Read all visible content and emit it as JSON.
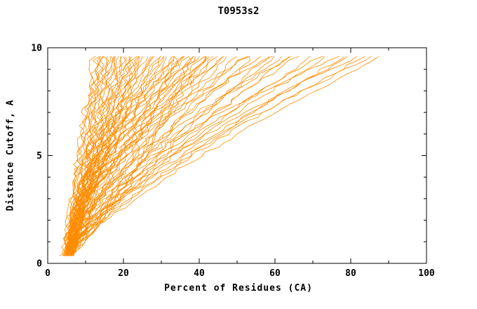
{
  "chart_data": {
    "type": "line",
    "title": "T0953s2",
    "xlabel": "Percent of Residues (CA)",
    "ylabel": "Distance Cutoff, A",
    "xlim": [
      0,
      100
    ],
    "ylim": [
      0,
      10
    ],
    "x_major_ticks": [
      0,
      20,
      40,
      60,
      80,
      100
    ],
    "x_minor_step": 10,
    "y_major_ticks": [
      0,
      5,
      10
    ],
    "y_minor_step": 1,
    "grid": false,
    "legend": "none",
    "color": "#ff8c00",
    "axis_color": "#000000",
    "y_start": 0.35,
    "y_end": 9.6,
    "jitter": 0.9,
    "steps": 46,
    "curves_note": "Each curve is a model accuracy curve [x_at_cutoff0, x_at_cutoff10, shape_exponent]; x interpolated as x0+(x1-x0)*t^p over distance cutoff",
    "curves": [
      [
        4.0,
        12,
        1.0
      ],
      [
        4.5,
        13,
        1.1
      ],
      [
        5.0,
        13.5,
        0.9
      ],
      [
        4.2,
        14,
        1.2
      ],
      [
        5.5,
        14.5,
        1.0
      ],
      [
        4.8,
        15,
        1.3
      ],
      [
        5.2,
        15.5,
        0.95
      ],
      [
        4.4,
        16,
        1.1
      ],
      [
        5.8,
        16.5,
        1.05
      ],
      [
        5.0,
        17,
        1.2
      ],
      [
        4.6,
        17.5,
        0.9
      ],
      [
        5.4,
        18,
        1.15
      ],
      [
        6.0,
        18.5,
        1.0
      ],
      [
        4.9,
        19,
        1.25
      ],
      [
        5.6,
        19.5,
        1.1
      ],
      [
        5.1,
        20,
        0.95
      ],
      [
        4.7,
        20.5,
        1.2
      ],
      [
        5.9,
        21,
        1.05
      ],
      [
        5.3,
        21.5,
        1.3
      ],
      [
        6.1,
        22,
        1.0
      ],
      [
        5.0,
        22.5,
        1.15
      ],
      [
        5.5,
        23,
        0.9
      ],
      [
        4.8,
        23.5,
        1.2
      ],
      [
        6.2,
        24,
        1.05
      ],
      [
        5.2,
        24.5,
        1.1
      ],
      [
        5.0,
        25,
        1.2
      ],
      [
        5.6,
        26,
        1.35
      ],
      [
        4.9,
        27,
        1.1
      ],
      [
        6.0,
        28,
        1.5
      ],
      [
        5.3,
        29,
        1.25
      ],
      [
        5.8,
        30,
        1.4
      ],
      [
        5.1,
        31,
        1.15
      ],
      [
        6.3,
        32,
        1.6
      ],
      [
        5.5,
        33,
        1.3
      ],
      [
        5.0,
        34,
        1.45
      ],
      [
        6.1,
        35,
        1.2
      ],
      [
        5.4,
        36,
        1.55
      ],
      [
        5.9,
        37,
        1.35
      ],
      [
        5.2,
        38,
        1.5
      ],
      [
        6.4,
        39,
        1.25
      ],
      [
        5.6,
        40,
        1.6
      ],
      [
        5.1,
        41,
        1.4
      ],
      [
        6.0,
        42,
        1.3
      ],
      [
        5.5,
        43,
        1.55
      ],
      [
        6.2,
        44,
        1.45
      ],
      [
        5.3,
        45,
        1.35
      ],
      [
        5.8,
        27.5,
        1.7
      ],
      [
        5.0,
        30.5,
        1.8
      ],
      [
        6.1,
        33.5,
        1.9
      ],
      [
        5.4,
        36.5,
        2.0
      ],
      [
        5.9,
        39.5,
        2.1
      ],
      [
        5.2,
        42.5,
        1.9
      ],
      [
        6.3,
        34,
        0.8
      ],
      [
        5.6,
        38,
        0.75
      ],
      [
        5.1,
        41.5,
        0.85
      ],
      [
        5.5,
        46,
        1.2
      ],
      [
        6.0,
        48,
        1.35
      ],
      [
        5.2,
        50,
        1.1
      ],
      [
        6.4,
        52,
        1.5
      ],
      [
        5.7,
        54,
        1.25
      ],
      [
        5.3,
        56,
        1.4
      ],
      [
        6.1,
        58,
        1.15
      ],
      [
        5.6,
        60,
        1.3
      ],
      [
        6.5,
        62,
        1.45
      ],
      [
        5.4,
        64,
        1.2
      ],
      [
        5.9,
        66,
        1.35
      ],
      [
        5.5,
        70,
        1.25
      ],
      [
        6.0,
        72,
        1.4
      ],
      [
        5.3,
        74,
        1.3
      ],
      [
        5.7,
        78,
        1.2
      ],
      [
        6.1,
        80,
        1.35
      ],
      [
        5.6,
        82,
        1.5
      ],
      [
        6.4,
        84,
        1.3
      ],
      [
        5.8,
        86,
        1.4
      ],
      [
        6.0,
        88,
        1.25
      ],
      [
        5.4,
        47,
        1.8
      ],
      [
        6.2,
        53,
        1.9
      ],
      [
        5.7,
        59,
        2.0
      ],
      [
        6.0,
        65,
        1.7
      ],
      [
        6.3,
        77,
        1.75
      ]
    ]
  }
}
